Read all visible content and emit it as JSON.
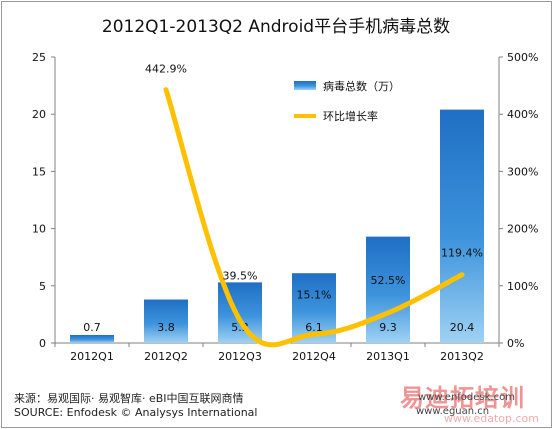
{
  "chart_data": {
    "type": "bar",
    "title": "2012Q1-2013Q2  Android平台手机病毒总数",
    "categories": [
      "2012Q1",
      "2012Q2",
      "2012Q3",
      "2012Q4",
      "2013Q1",
      "2013Q2"
    ],
    "series": [
      {
        "name": "病毒总数（万）",
        "type": "bar",
        "axis": "left",
        "values": [
          0.7,
          3.8,
          5.3,
          6.1,
          9.3,
          20.4
        ],
        "labels": [
          "0.7",
          "3.8",
          "5.3",
          "6.1",
          "9.3",
          "20.4"
        ],
        "color": "#2f7fd0"
      },
      {
        "name": "环比增长率",
        "type": "line",
        "axis": "right",
        "values": [
          null,
          442.9,
          39.5,
          15.1,
          52.5,
          119.4
        ],
        "labels": [
          "",
          "442.9%",
          "39.5%",
          "15.1%",
          "52.5%",
          "119.4%"
        ],
        "color": "#ffc000"
      }
    ],
    "y_left": {
      "min": 0,
      "max": 25,
      "ticks": [
        "0",
        "5",
        "10",
        "15",
        "20",
        "25"
      ]
    },
    "y_right": {
      "min": 0,
      "max": 500,
      "ticks": [
        "0%",
        "100%",
        "200%",
        "300%",
        "400%",
        "500%"
      ]
    },
    "grid": false,
    "legend_position": "top-right"
  },
  "footer": {
    "source_cn": "来源：易观国际· 易观智库· eBI中国互联网商情",
    "source_en": "SOURCE: Enfodesk © Analysys International"
  },
  "watermark": {
    "brand_cn": "易迪拓培训",
    "url_1": "www.enfodesk.com",
    "url_2": "www.eguan.cn",
    "url_3": "www.edatop.com"
  }
}
